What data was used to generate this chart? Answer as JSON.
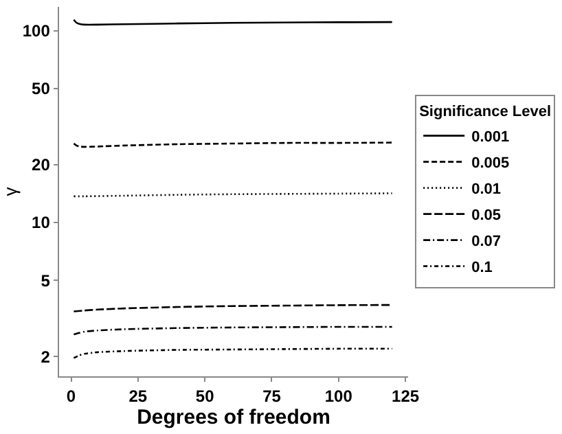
{
  "chart_data": {
    "type": "line",
    "xlabel": "Degrees of freedom",
    "ylabel": "γ",
    "legend_title": "Significance Level",
    "legend": "right",
    "grid": false,
    "log": "y",
    "marker": "none",
    "xlim": [
      -4.5,
      126
    ],
    "xticks": [
      0,
      25,
      50,
      75,
      100,
      125
    ],
    "ylim": [
      1.58,
      133
    ],
    "yticks": [
      2,
      5,
      10,
      20,
      50,
      100
    ],
    "series": [
      {
        "name": "0.001",
        "color": "#000000",
        "line_style": "solid",
        "x": [
          1,
          2,
          3,
          5,
          10,
          20,
          40,
          60,
          80,
          100,
          120
        ],
        "values": [
          114,
          110,
          108.5,
          107.5,
          107.5,
          108,
          109,
          109.8,
          110.3,
          110.6,
          110.8
        ]
      },
      {
        "name": "0.005",
        "color": "#000000",
        "line_style": "dashed",
        "x": [
          1,
          2,
          3,
          5,
          10,
          20,
          40,
          60,
          80,
          100,
          120
        ],
        "values": [
          25.8,
          25.2,
          24.9,
          24.8,
          24.9,
          25.2,
          25.6,
          25.8,
          26.0,
          26.0,
          26.1
        ]
      },
      {
        "name": "0.01",
        "color": "#000000",
        "line_style": "dotted",
        "x": [
          1,
          5,
          20,
          40,
          60,
          80,
          100,
          120
        ],
        "values": [
          13.7,
          13.7,
          13.8,
          13.95,
          14.05,
          14.1,
          14.15,
          14.2
        ]
      },
      {
        "name": "0.05",
        "color": "#000000",
        "line_style": "longdash",
        "x": [
          1,
          5,
          10,
          20,
          40,
          60,
          80,
          100,
          120
        ],
        "values": [
          3.44,
          3.48,
          3.52,
          3.57,
          3.63,
          3.67,
          3.69,
          3.71,
          3.72
        ]
      },
      {
        "name": "0.07",
        "color": "#000000",
        "line_style": "longdashdot",
        "x": [
          1,
          3,
          5,
          10,
          20,
          40,
          60,
          80,
          100,
          120
        ],
        "values": [
          2.61,
          2.66,
          2.7,
          2.74,
          2.78,
          2.82,
          2.84,
          2.85,
          2.86,
          2.86
        ]
      },
      {
        "name": "0.1",
        "color": "#000000",
        "line_style": "dashdot",
        "x": [
          1,
          3,
          5,
          10,
          20,
          40,
          60,
          80,
          100,
          120
        ],
        "values": [
          1.97,
          2.03,
          2.07,
          2.11,
          2.14,
          2.17,
          2.18,
          2.19,
          2.2,
          2.2
        ]
      }
    ]
  }
}
